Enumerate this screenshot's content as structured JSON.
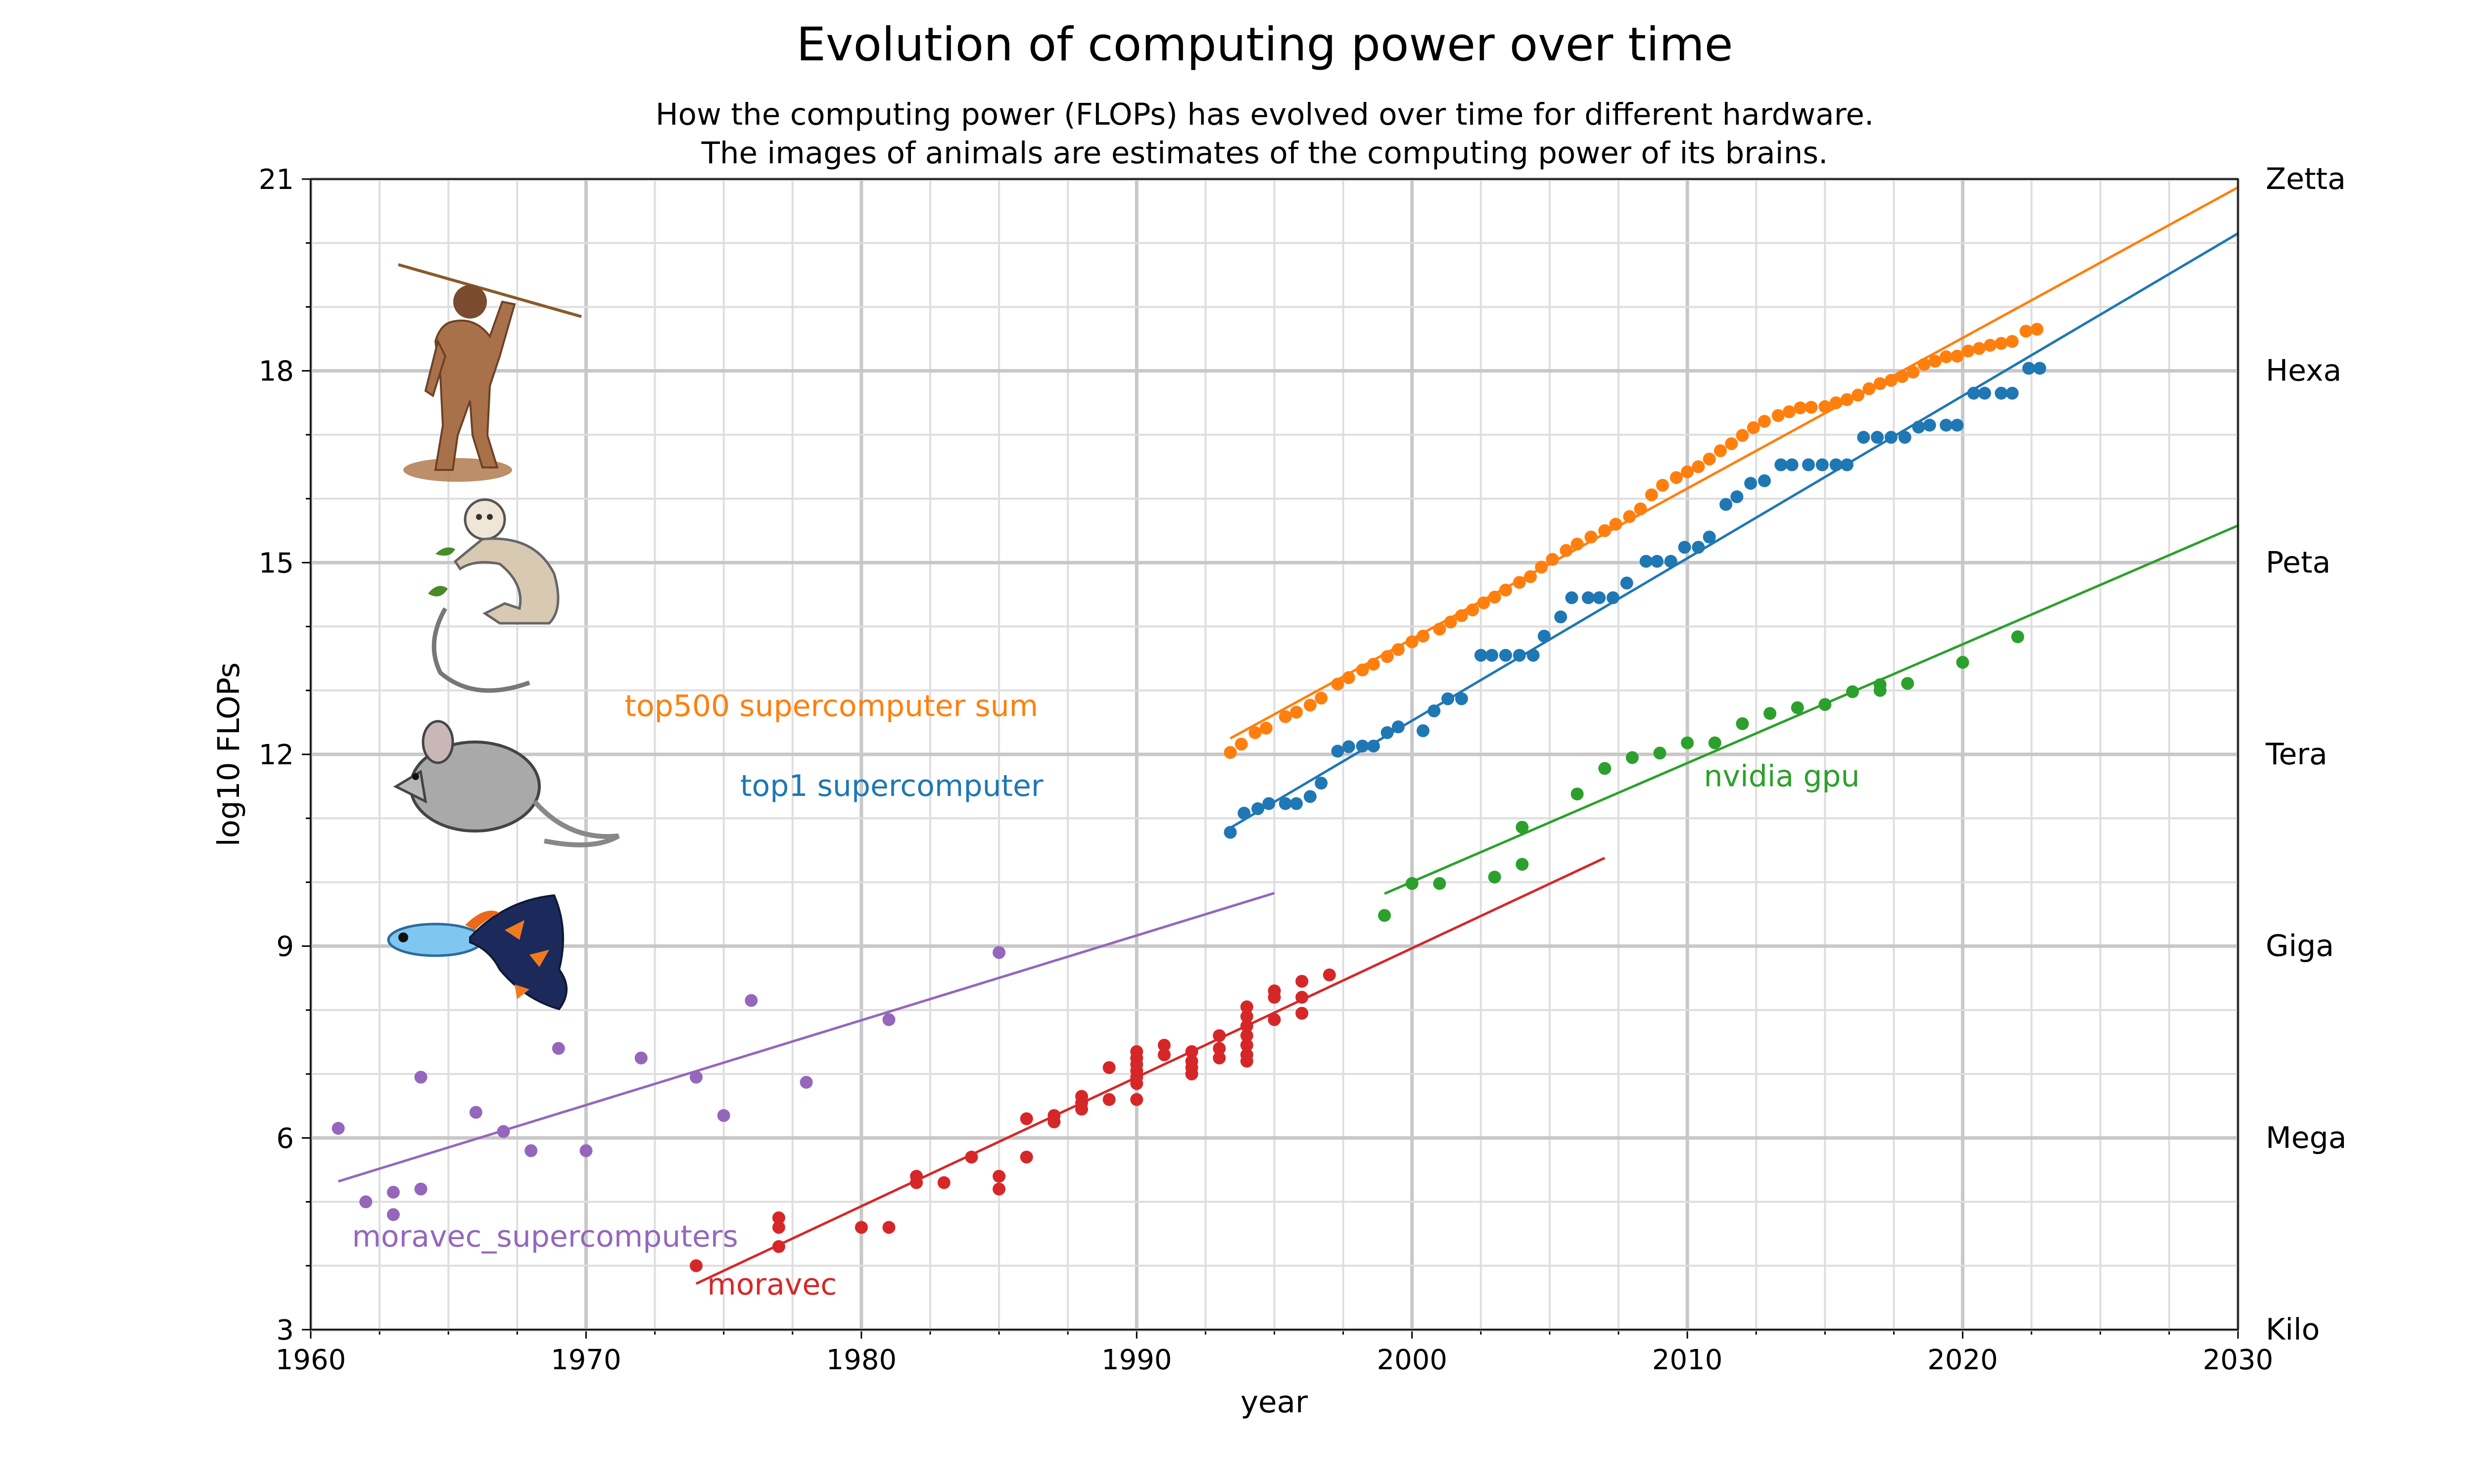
{
  "chart_data": {
    "type": "scatter",
    "title": "Evolution of computing power over time",
    "subtitle_lines": [
      "How the computing power (FLOPs) has evolved over time for different hardware.",
      "The images of animals are estimates of the computing power of its brains."
    ],
    "xlabel": "year",
    "ylabel": "log10 FLOPs",
    "xlim": [
      1960,
      2030
    ],
    "ylim": [
      3,
      21
    ],
    "x_major_ticks": [
      "1960",
      "1970",
      "1980",
      "1990",
      "2000",
      "2010",
      "2020",
      "2030"
    ],
    "y_major_ticks": [
      "3",
      "6",
      "9",
      "12",
      "15",
      "18",
      "21"
    ],
    "grid": true,
    "right_axis_labels": [
      {
        "y": 3,
        "label": "Kilo"
      },
      {
        "y": 6,
        "label": "Mega"
      },
      {
        "y": 9,
        "label": "Giga"
      },
      {
        "y": 12,
        "label": "Tera"
      },
      {
        "y": 15,
        "label": "Peta"
      },
      {
        "y": 18,
        "label": "Hexa"
      },
      {
        "y": 21,
        "label": "Zetta"
      }
    ],
    "animal_images": [
      "human-icon",
      "monkey-icon",
      "mouse-icon",
      "guppy-fish-icon"
    ],
    "series": [
      {
        "name": "top500 supercomputer sum",
        "color": "#ff7f0e",
        "label_at": [
          1971.4,
          12.6
        ],
        "trend": {
          "x": [
            1993.4,
            2030
          ],
          "y": [
            12.25,
            20.87
          ]
        },
        "points": [
          [
            1993.4,
            12.03
          ],
          [
            1993.8,
            12.16
          ],
          [
            1994.3,
            12.34
          ],
          [
            1994.7,
            12.41
          ],
          [
            1995.4,
            12.59
          ],
          [
            1995.8,
            12.66
          ],
          [
            1996.3,
            12.77
          ],
          [
            1996.7,
            12.88
          ],
          [
            1997.3,
            13.1
          ],
          [
            1997.7,
            13.2
          ],
          [
            1998.2,
            13.32
          ],
          [
            1998.6,
            13.41
          ],
          [
            1999.1,
            13.53
          ],
          [
            1999.5,
            13.64
          ],
          [
            2000.0,
            13.76
          ],
          [
            2000.4,
            13.85
          ],
          [
            2001.0,
            13.96
          ],
          [
            2001.4,
            14.07
          ],
          [
            2001.8,
            14.17
          ],
          [
            2002.2,
            14.26
          ],
          [
            2002.6,
            14.37
          ],
          [
            2003.0,
            14.46
          ],
          [
            2003.4,
            14.57
          ],
          [
            2003.9,
            14.69
          ],
          [
            2004.3,
            14.78
          ],
          [
            2004.7,
            14.93
          ],
          [
            2005.1,
            15.05
          ],
          [
            2005.6,
            15.19
          ],
          [
            2006.0,
            15.29
          ],
          [
            2006.5,
            15.4
          ],
          [
            2007.0,
            15.5
          ],
          [
            2007.4,
            15.6
          ],
          [
            2007.9,
            15.72
          ],
          [
            2008.3,
            15.84
          ],
          [
            2008.7,
            16.06
          ],
          [
            2009.1,
            16.21
          ],
          [
            2009.6,
            16.33
          ],
          [
            2010.0,
            16.42
          ],
          [
            2010.4,
            16.5
          ],
          [
            2010.8,
            16.62
          ],
          [
            2011.2,
            16.75
          ],
          [
            2011.6,
            16.86
          ],
          [
            2012.0,
            16.99
          ],
          [
            2012.4,
            17.11
          ],
          [
            2012.8,
            17.21
          ],
          [
            2013.3,
            17.3
          ],
          [
            2013.7,
            17.36
          ],
          [
            2014.1,
            17.42
          ],
          [
            2014.5,
            17.43
          ],
          [
            2015.0,
            17.44
          ],
          [
            2015.4,
            17.5
          ],
          [
            2015.8,
            17.55
          ],
          [
            2016.2,
            17.62
          ],
          [
            2016.6,
            17.72
          ],
          [
            2017.0,
            17.8
          ],
          [
            2017.4,
            17.85
          ],
          [
            2017.8,
            17.91
          ],
          [
            2018.2,
            17.98
          ],
          [
            2018.6,
            18.1
          ],
          [
            2019.0,
            18.15
          ],
          [
            2019.4,
            18.22
          ],
          [
            2019.8,
            18.23
          ],
          [
            2020.2,
            18.31
          ],
          [
            2020.6,
            18.35
          ],
          [
            2021.0,
            18.4
          ],
          [
            2021.4,
            18.43
          ],
          [
            2021.8,
            18.46
          ],
          [
            2022.3,
            18.62
          ],
          [
            2022.7,
            18.65
          ]
        ]
      },
      {
        "name": "top1 supercomputer",
        "color": "#1f77b4",
        "label_at": [
          1975.6,
          11.35
        ],
        "trend": {
          "x": [
            1993.4,
            2030
          ],
          "y": [
            10.85,
            20.15
          ]
        },
        "points": [
          [
            1993.4,
            10.78
          ],
          [
            1993.9,
            11.08
          ],
          [
            1994.4,
            11.15
          ],
          [
            1994.8,
            11.23
          ],
          [
            1995.4,
            11.23
          ],
          [
            1995.8,
            11.23
          ],
          [
            1996.3,
            11.34
          ],
          [
            1996.7,
            11.55
          ],
          [
            1997.3,
            12.05
          ],
          [
            1997.7,
            12.12
          ],
          [
            1998.2,
            12.13
          ],
          [
            1998.6,
            12.13
          ],
          [
            1999.1,
            12.34
          ],
          [
            1999.5,
            12.43
          ],
          [
            2000.4,
            12.37
          ],
          [
            2000.8,
            12.68
          ],
          [
            2001.3,
            12.87
          ],
          [
            2001.8,
            12.87
          ],
          [
            2002.5,
            13.55
          ],
          [
            2002.9,
            13.55
          ],
          [
            2003.4,
            13.55
          ],
          [
            2003.9,
            13.55
          ],
          [
            2004.4,
            13.55
          ],
          [
            2004.8,
            13.85
          ],
          [
            2005.4,
            14.15
          ],
          [
            2005.8,
            14.45
          ],
          [
            2006.4,
            14.45
          ],
          [
            2006.8,
            14.45
          ],
          [
            2007.3,
            14.45
          ],
          [
            2007.8,
            14.68
          ],
          [
            2008.5,
            15.02
          ],
          [
            2008.9,
            15.02
          ],
          [
            2009.4,
            15.02
          ],
          [
            2009.9,
            15.24
          ],
          [
            2010.4,
            15.24
          ],
          [
            2010.8,
            15.4
          ],
          [
            2011.4,
            15.91
          ],
          [
            2011.8,
            16.03
          ],
          [
            2012.3,
            16.24
          ],
          [
            2012.8,
            16.28
          ],
          [
            2013.4,
            16.53
          ],
          [
            2013.8,
            16.53
          ],
          [
            2014.4,
            16.53
          ],
          [
            2014.9,
            16.53
          ],
          [
            2015.4,
            16.53
          ],
          [
            2015.8,
            16.53
          ],
          [
            2016.4,
            16.96
          ],
          [
            2016.9,
            16.96
          ],
          [
            2017.4,
            16.96
          ],
          [
            2017.9,
            16.96
          ],
          [
            2018.4,
            17.12
          ],
          [
            2018.8,
            17.15
          ],
          [
            2019.4,
            17.15
          ],
          [
            2019.8,
            17.15
          ],
          [
            2020.4,
            17.65
          ],
          [
            2020.8,
            17.65
          ],
          [
            2021.4,
            17.65
          ],
          [
            2021.8,
            17.65
          ],
          [
            2022.4,
            18.04
          ],
          [
            2022.8,
            18.04
          ]
        ]
      },
      {
        "name": "nvidia gpu",
        "color": "#2ca02c",
        "label_at": [
          2010.6,
          11.5
        ],
        "trend": {
          "x": [
            1999,
            2030
          ],
          "y": [
            9.82,
            15.58
          ]
        },
        "points": [
          [
            1999,
            9.48
          ],
          [
            2000,
            9.98
          ],
          [
            2001,
            9.98
          ],
          [
            2003,
            10.08
          ],
          [
            2004,
            10.28
          ],
          [
            2004,
            10.86
          ],
          [
            2006,
            11.38
          ],
          [
            2007,
            11.78
          ],
          [
            2008,
            11.95
          ],
          [
            2009,
            12.02
          ],
          [
            2010,
            12.18
          ],
          [
            2011,
            12.18
          ],
          [
            2012,
            12.48
          ],
          [
            2013,
            12.64
          ],
          [
            2014,
            12.73
          ],
          [
            2015,
            12.78
          ],
          [
            2016,
            12.98
          ],
          [
            2017,
            13.0
          ],
          [
            2017,
            13.09
          ],
          [
            2018,
            13.11
          ],
          [
            2020,
            13.44
          ],
          [
            2022,
            13.84
          ]
        ]
      },
      {
        "name": "moravec",
        "color": "#d62728",
        "label_at": [
          1974.4,
          3.55
        ],
        "trend": {
          "x": [
            1974,
            2007
          ],
          "y": [
            3.72,
            10.38
          ]
        },
        "points": [
          [
            1974,
            4.0
          ],
          [
            1977,
            4.3
          ],
          [
            1977,
            4.6
          ],
          [
            1977,
            4.75
          ],
          [
            1980,
            4.6
          ],
          [
            1981,
            4.6
          ],
          [
            1982,
            5.3
          ],
          [
            1982,
            5.4
          ],
          [
            1983,
            5.3
          ],
          [
            1984,
            5.7
          ],
          [
            1985,
            5.2
          ],
          [
            1985,
            5.4
          ],
          [
            1986,
            5.7
          ],
          [
            1986,
            6.3
          ],
          [
            1987,
            6.25
          ],
          [
            1987,
            6.35
          ],
          [
            1988,
            6.45
          ],
          [
            1988,
            6.55
          ],
          [
            1988,
            6.65
          ],
          [
            1989,
            6.6
          ],
          [
            1989,
            7.1
          ],
          [
            1990,
            6.6
          ],
          [
            1990,
            6.85
          ],
          [
            1990,
            6.95
          ],
          [
            1990,
            7.05
          ],
          [
            1990,
            7.15
          ],
          [
            1990,
            7.25
          ],
          [
            1990,
            7.35
          ],
          [
            1991,
            7.3
          ],
          [
            1991,
            7.45
          ],
          [
            1992,
            7.0
          ],
          [
            1992,
            7.1
          ],
          [
            1992,
            7.2
          ],
          [
            1992,
            7.35
          ],
          [
            1993,
            7.25
          ],
          [
            1993,
            7.4
          ],
          [
            1993,
            7.6
          ],
          [
            1994,
            7.2
          ],
          [
            1994,
            7.3
          ],
          [
            1994,
            7.45
          ],
          [
            1994,
            7.6
          ],
          [
            1994,
            7.75
          ],
          [
            1994,
            7.9
          ],
          [
            1994,
            8.05
          ],
          [
            1995,
            7.85
          ],
          [
            1995,
            8.2
          ],
          [
            1995,
            8.3
          ],
          [
            1996,
            7.95
          ],
          [
            1996,
            8.2
          ],
          [
            1996,
            8.45
          ],
          [
            1997,
            8.55
          ]
        ]
      },
      {
        "name": "moravec_supercomputers",
        "color": "#9467bd",
        "label_at": [
          1961.5,
          4.3
        ],
        "trend": {
          "x": [
            1961,
            1995
          ],
          "y": [
            5.32,
            9.83
          ]
        },
        "points": [
          [
            1961,
            6.15
          ],
          [
            1962,
            5.0
          ],
          [
            1963,
            5.15
          ],
          [
            1963,
            4.8
          ],
          [
            1964,
            6.95
          ],
          [
            1964,
            5.2
          ],
          [
            1966,
            6.4
          ],
          [
            1967,
            6.1
          ],
          [
            1968,
            5.8
          ],
          [
            1969,
            7.4
          ],
          [
            1970,
            5.8
          ],
          [
            1972,
            7.25
          ],
          [
            1974,
            6.95
          ],
          [
            1975,
            6.35
          ],
          [
            1976,
            8.15
          ],
          [
            1978,
            6.87
          ],
          [
            1981,
            7.85
          ],
          [
            1985,
            8.9
          ]
        ]
      }
    ]
  }
}
